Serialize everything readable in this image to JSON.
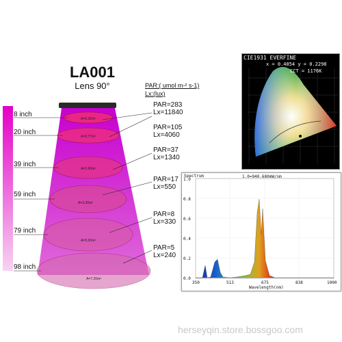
{
  "product": {
    "model": "LA001",
    "lens": "Lens 90°"
  },
  "units": {
    "par": "PAR:( umol m-² s-1)",
    "lux": "Lx:(lux)"
  },
  "measurements": [
    {
      "distance": "8 inch",
      "area": "A=0.32m²",
      "par": "PAR=283",
      "lux": "Lx=11840"
    },
    {
      "distance": "20 inch",
      "area": "A=0.77m²",
      "par": "PAR=105",
      "lux": "Lx=4060"
    },
    {
      "distance": "39 inch",
      "area": "A=1.60m²",
      "par": "PAR=37",
      "lux": "Lx=1340"
    },
    {
      "distance": "59 inch",
      "area": "A=3.30m²",
      "par": "PAR=17",
      "lux": "Lx=550"
    },
    {
      "distance": "79 inch",
      "area": "A=5.20m²",
      "par": "PAR=8",
      "lux": "Lx=330"
    },
    {
      "distance": "98 inch",
      "area": "A=7.20m²",
      "par": "PAR=5",
      "lux": "Lx=240"
    }
  ],
  "cie": {
    "title": "CIE1931 EVERFINE",
    "xy": "x = 0.4854  y = 0.2298",
    "cct": "CCT = 1176K"
  },
  "spectrum": {
    "title": "Spectrum",
    "peak_note": "1.0=940.680mW/nm",
    "xlabel": "Wavelength(nm)",
    "x_ticks": [
      "350",
      "513",
      "675",
      "838",
      "1000"
    ],
    "y_ticks": [
      "0.0",
      "0.2",
      "0.4",
      "0.6",
      "0.8",
      "1.0"
    ]
  },
  "watermark": "herseyqin.store.bossgoo.com",
  "colors": {
    "beam": "#c000d0",
    "ellipse": "#e0207a",
    "intensity_bar_top": "#e400c8",
    "intensity_bar_bottom": "#f7d3f2"
  }
}
